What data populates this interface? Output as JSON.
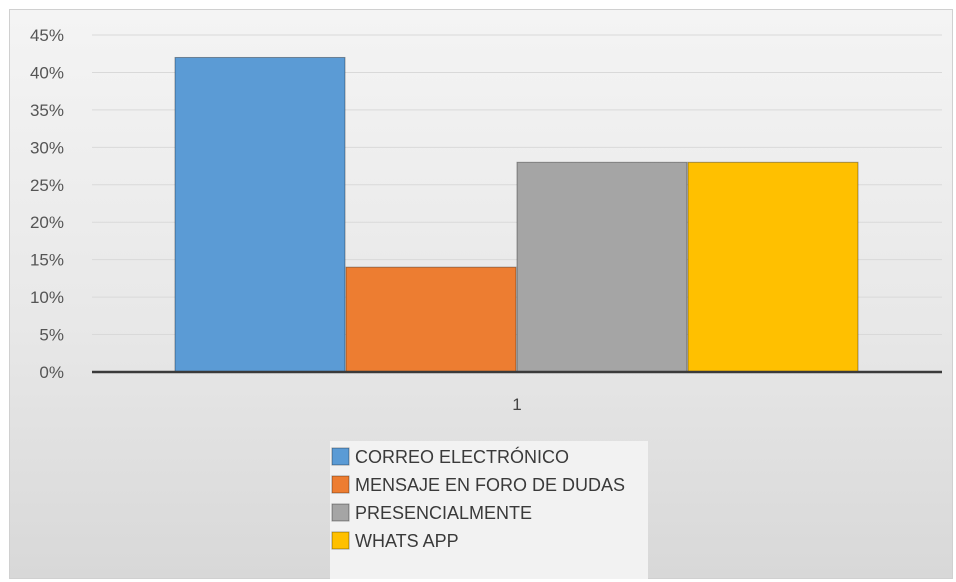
{
  "chart_data": {
    "type": "bar",
    "title": "",
    "xlabel": "",
    "ylabel": "",
    "categories": [
      "1"
    ],
    "ylim": [
      0,
      45
    ],
    "yticks": [
      "0%",
      "5%",
      "10%",
      "15%",
      "20%",
      "25%",
      "30%",
      "35%",
      "40%",
      "45%"
    ],
    "grid": true,
    "legend_position": "bottom",
    "series": [
      {
        "name": "CORREO ELECTRÓNICO",
        "values": [
          42
        ],
        "color": "#5B9BD5"
      },
      {
        "name": "MENSAJE EN FORO DE DUDAS",
        "values": [
          14
        ],
        "color": "#ED7D31"
      },
      {
        "name": "PRESENCIALMENTE",
        "values": [
          28
        ],
        "color": "#A5A5A5"
      },
      {
        "name": "WHATS APP",
        "values": [
          28
        ],
        "color": "#FFC000"
      }
    ]
  }
}
